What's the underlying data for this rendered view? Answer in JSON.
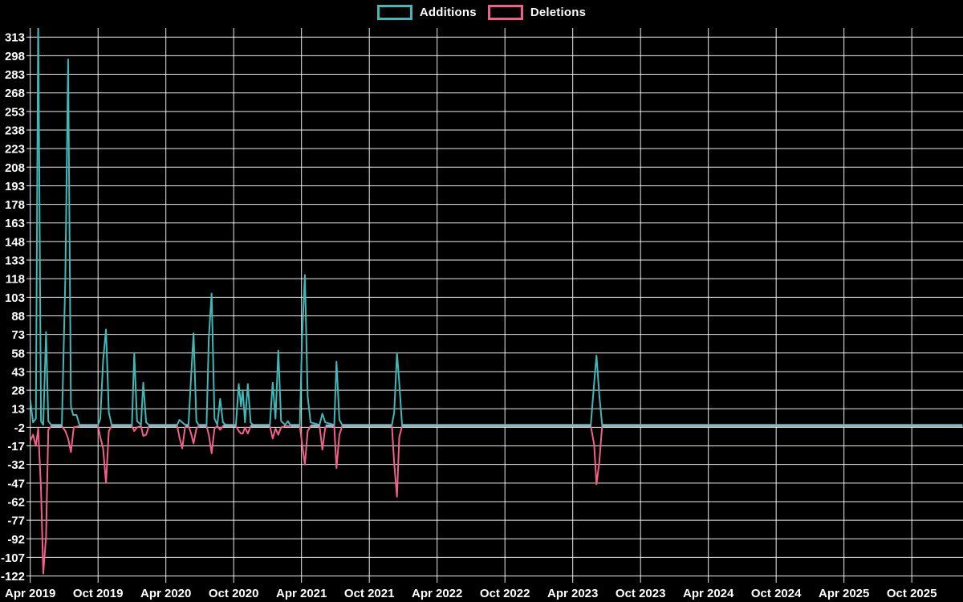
{
  "legend": {
    "additions_label": "Additions",
    "deletions_label": "Deletions"
  },
  "chart_data": {
    "type": "line",
    "title": "",
    "xlabel": "",
    "ylabel": "",
    "legend_position": "top-center",
    "grid": true,
    "background_color": "#000000",
    "grid_color": "#ffffff",
    "text_color": "#ffffff",
    "baseline_overlap_color": "#94b2c0",
    "y_ticks": [
      313,
      298,
      283,
      268,
      253,
      238,
      223,
      208,
      193,
      178,
      163,
      148,
      133,
      118,
      103,
      88,
      73,
      58,
      43,
      28,
      13,
      -2,
      -17,
      -32,
      -47,
      -62,
      -77,
      -92,
      -107,
      -122
    ],
    "ylim": [
      -127,
      320
    ],
    "x_tick_labels": [
      "Apr 2019",
      "Oct 2019",
      "Apr 2020",
      "Oct 2020",
      "Apr 2021",
      "Oct 2021",
      "Apr 2022",
      "Oct 2022",
      "Apr 2023",
      "Oct 2023",
      "Apr 2024",
      "Oct 2024",
      "Apr 2025",
      "Oct 2025"
    ],
    "x_months_span": 82.5,
    "series": [
      {
        "name": "Additions",
        "color": "#3fb8b8",
        "baseline": 0,
        "points": [
          [
            0,
            20
          ],
          [
            0.25,
            2
          ],
          [
            0.5,
            5
          ],
          [
            0.7,
            330
          ],
          [
            0.95,
            3
          ],
          [
            1.15,
            0
          ],
          [
            1.4,
            75
          ],
          [
            1.6,
            3
          ],
          [
            1.85,
            0
          ],
          [
            2.8,
            0
          ],
          [
            3.1,
            118
          ],
          [
            3.35,
            295
          ],
          [
            3.6,
            15
          ],
          [
            3.8,
            8
          ],
          [
            4.1,
            8
          ],
          [
            4.35,
            0
          ],
          [
            6.0,
            0
          ],
          [
            6.2,
            5
          ],
          [
            6.45,
            52
          ],
          [
            6.7,
            77
          ],
          [
            6.95,
            10
          ],
          [
            7.2,
            0
          ],
          [
            9.0,
            0
          ],
          [
            9.2,
            58
          ],
          [
            9.45,
            3
          ],
          [
            9.8,
            0
          ],
          [
            10.0,
            34
          ],
          [
            10.25,
            2
          ],
          [
            10.5,
            0
          ],
          [
            13.0,
            0
          ],
          [
            13.2,
            4
          ],
          [
            13.45,
            2
          ],
          [
            13.7,
            0
          ],
          [
            14.0,
            0
          ],
          [
            14.2,
            34
          ],
          [
            14.45,
            74
          ],
          [
            14.7,
            3
          ],
          [
            14.9,
            0
          ],
          [
            15.6,
            0
          ],
          [
            15.8,
            70
          ],
          [
            16.05,
            106
          ],
          [
            16.3,
            5
          ],
          [
            16.55,
            0
          ],
          [
            16.8,
            21
          ],
          [
            17.05,
            2
          ],
          [
            17.3,
            0
          ],
          [
            18.2,
            0
          ],
          [
            18.45,
            33
          ],
          [
            18.65,
            15
          ],
          [
            18.8,
            28
          ],
          [
            19.0,
            2
          ],
          [
            19.25,
            33
          ],
          [
            19.5,
            2
          ],
          [
            19.7,
            0
          ],
          [
            21.2,
            0
          ],
          [
            21.45,
            34
          ],
          [
            21.7,
            5
          ],
          [
            21.95,
            60
          ],
          [
            22.2,
            3
          ],
          [
            22.55,
            0
          ],
          [
            22.8,
            3
          ],
          [
            23.0,
            0
          ],
          [
            23.85,
            0
          ],
          [
            24.05,
            70
          ],
          [
            24.3,
            121
          ],
          [
            24.55,
            23
          ],
          [
            24.8,
            2
          ],
          [
            25.6,
            0
          ],
          [
            25.85,
            9
          ],
          [
            26.1,
            2
          ],
          [
            26.9,
            0
          ],
          [
            27.1,
            51
          ],
          [
            27.35,
            4
          ],
          [
            27.6,
            0
          ],
          [
            32.0,
            0
          ],
          [
            32.2,
            10
          ],
          [
            32.45,
            58
          ],
          [
            32.65,
            34
          ],
          [
            32.9,
            0
          ],
          [
            49.6,
            0
          ],
          [
            49.9,
            34
          ],
          [
            50.1,
            56
          ],
          [
            50.35,
            24
          ],
          [
            50.6,
            0
          ],
          [
            82.5,
            0
          ]
        ]
      },
      {
        "name": "Deletions",
        "color": "#f2608a",
        "baseline": -1,
        "points": [
          [
            0,
            -13
          ],
          [
            0.25,
            -8
          ],
          [
            0.5,
            -17
          ],
          [
            0.7,
            -3
          ],
          [
            0.95,
            -52
          ],
          [
            1.15,
            -120
          ],
          [
            1.4,
            -90
          ],
          [
            1.6,
            -4
          ],
          [
            1.85,
            -1
          ],
          [
            2.8,
            -1
          ],
          [
            3.1,
            -5
          ],
          [
            3.35,
            -11
          ],
          [
            3.6,
            -22
          ],
          [
            3.85,
            -2
          ],
          [
            4.35,
            -1
          ],
          [
            6.0,
            -1
          ],
          [
            6.2,
            -10
          ],
          [
            6.45,
            -19
          ],
          [
            6.7,
            -47
          ],
          [
            6.95,
            -5
          ],
          [
            7.2,
            -1
          ],
          [
            9.0,
            -1
          ],
          [
            9.2,
            -5
          ],
          [
            9.45,
            -2
          ],
          [
            9.8,
            -1
          ],
          [
            10.0,
            -9
          ],
          [
            10.25,
            -8
          ],
          [
            10.5,
            -1
          ],
          [
            13.0,
            -1
          ],
          [
            13.2,
            -10
          ],
          [
            13.45,
            -19
          ],
          [
            13.7,
            -2
          ],
          [
            14.0,
            -1
          ],
          [
            14.2,
            -6
          ],
          [
            14.45,
            -15
          ],
          [
            14.7,
            -3
          ],
          [
            14.9,
            -1
          ],
          [
            15.6,
            -1
          ],
          [
            15.8,
            -8
          ],
          [
            16.05,
            -23
          ],
          [
            16.3,
            -3
          ],
          [
            16.55,
            -1
          ],
          [
            16.8,
            -4
          ],
          [
            17.05,
            -1
          ],
          [
            18.2,
            -1
          ],
          [
            18.45,
            -5
          ],
          [
            18.65,
            -7
          ],
          [
            18.8,
            -7
          ],
          [
            19.0,
            -2
          ],
          [
            19.25,
            -7
          ],
          [
            19.5,
            -1
          ],
          [
            21.2,
            -1
          ],
          [
            21.45,
            -11
          ],
          [
            21.7,
            -3
          ],
          [
            21.95,
            -8
          ],
          [
            22.2,
            -2
          ],
          [
            22.55,
            -1
          ],
          [
            23.85,
            -1
          ],
          [
            24.05,
            -15
          ],
          [
            24.3,
            -32
          ],
          [
            24.55,
            -5
          ],
          [
            24.8,
            -1
          ],
          [
            25.6,
            -1
          ],
          [
            25.85,
            -20
          ],
          [
            26.1,
            -2
          ],
          [
            26.9,
            -1
          ],
          [
            27.1,
            -35
          ],
          [
            27.35,
            -8
          ],
          [
            27.6,
            -1
          ],
          [
            32.0,
            -1
          ],
          [
            32.2,
            -31
          ],
          [
            32.45,
            -58
          ],
          [
            32.65,
            -10
          ],
          [
            32.9,
            -1
          ],
          [
            49.6,
            -1
          ],
          [
            49.9,
            -16
          ],
          [
            50.1,
            -48
          ],
          [
            50.35,
            -30
          ],
          [
            50.6,
            -1
          ],
          [
            82.5,
            -1
          ]
        ]
      }
    ]
  }
}
